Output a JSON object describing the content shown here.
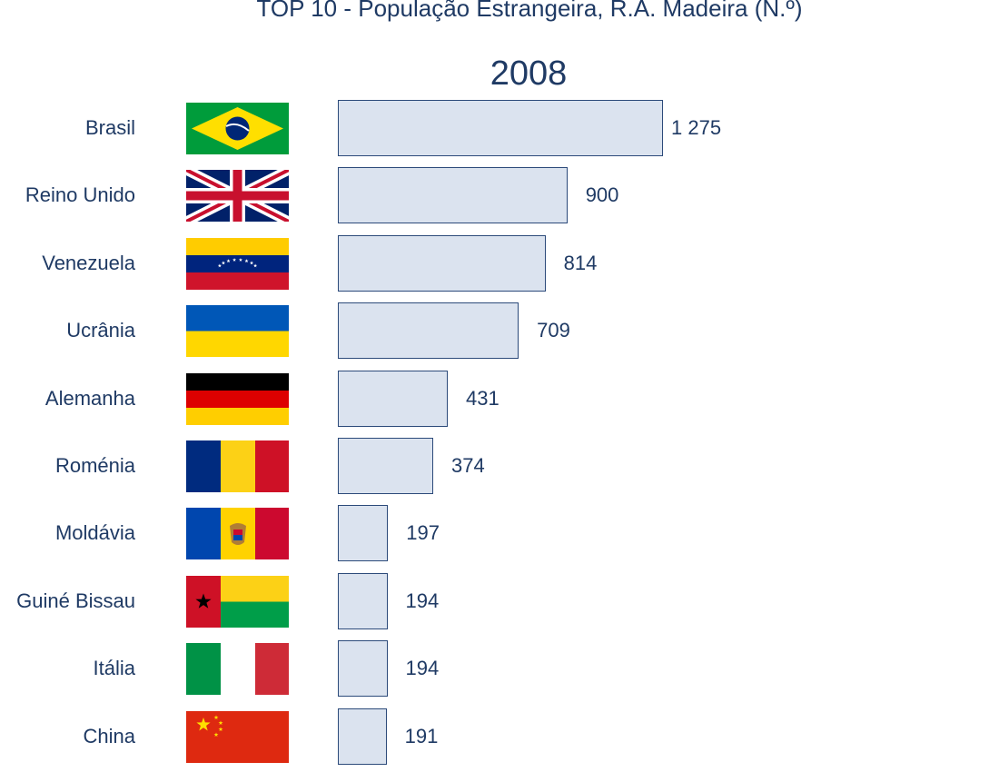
{
  "chart_data": {
    "type": "bar",
    "orientation": "horizontal",
    "title": "TOP 10 - População Estrangeira, R.A. Madeira (N.º)",
    "subtitle": "2008",
    "categories": [
      "Brasil",
      "Reino Unido",
      "Venezuela",
      "Ucrânia",
      "Alemanha",
      "Roménia",
      "Moldávia",
      "Guiné Bissau",
      "Itália",
      "China"
    ],
    "values": [
      1275,
      900,
      814,
      709,
      431,
      374,
      197,
      194,
      194,
      191
    ],
    "value_labels": [
      "1 275",
      "900",
      "814",
      "709",
      "431",
      "374",
      "197",
      "194",
      "194",
      "191"
    ],
    "flags": [
      "brazil-flag",
      "uk-flag",
      "venezuela-flag",
      "ukraine-flag",
      "germany-flag",
      "romania-flag",
      "moldova-flag",
      "guinea-bissau-flag",
      "italy-flag",
      "china-flag"
    ],
    "bar_color": "#dbe3ef",
    "bar_border_color": "#2c4a7a",
    "text_color": "#1f3a64",
    "grid": false,
    "legend": "none"
  }
}
